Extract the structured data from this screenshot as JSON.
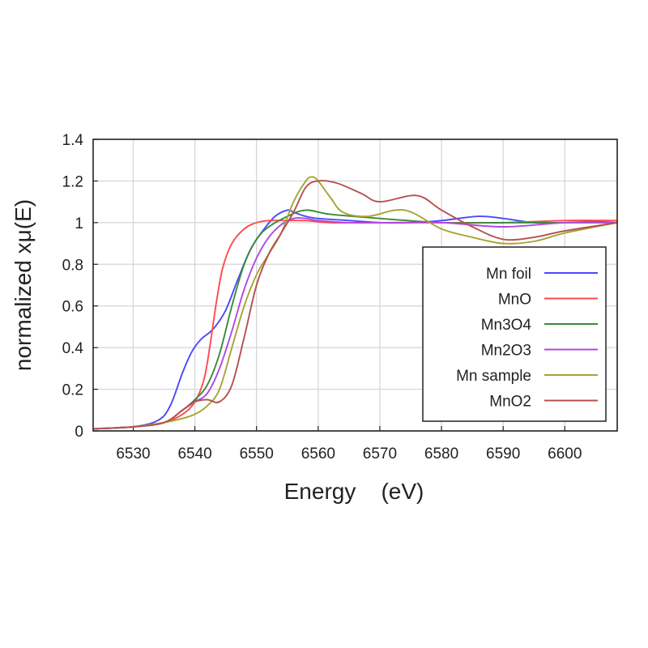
{
  "chart_data": {
    "type": "line",
    "xlabel": "Energy    (eV)",
    "ylabel": "normalized xμ(E)",
    "xlim": [
      6523.5,
      6608.5
    ],
    "ylim": [
      0,
      1.4
    ],
    "xticks": [
      6530,
      6540,
      6550,
      6560,
      6570,
      6580,
      6590,
      6600
    ],
    "xtick_labels": [
      "6530",
      "6540",
      "6550",
      "6560",
      "6570",
      "6580",
      "6590",
      "6600"
    ],
    "yticks": [
      0,
      0.2,
      0.4,
      0.6,
      0.8,
      1,
      1.2,
      1.4
    ],
    "ytick_labels": [
      "0",
      "0.2",
      "0.4",
      "0.6",
      "0.8",
      "1",
      "1.2",
      "1.4"
    ],
    "grid": true,
    "legend_position": "lower-right",
    "series": [
      {
        "name": "Mn foil",
        "color": "#4a4aff",
        "x": [
          6523.5,
          6530,
          6534,
          6536,
          6538,
          6539.5,
          6541,
          6543,
          6545,
          6547,
          6549,
          6551,
          6553,
          6555,
          6556,
          6558,
          6560,
          6565,
          6570,
          6575,
          6580,
          6586,
          6590,
          6595,
          6600,
          6608.5
        ],
        "y": [
          0.01,
          0.02,
          0.05,
          0.12,
          0.28,
          0.38,
          0.44,
          0.49,
          0.58,
          0.73,
          0.87,
          0.96,
          1.03,
          1.06,
          1.05,
          1.03,
          1.02,
          1.01,
          1.0,
          1.0,
          1.01,
          1.03,
          1.02,
          1.0,
          1.0,
          1.01
        ]
      },
      {
        "name": "MnO",
        "color": "#ff4a4a",
        "x": [
          6523.5,
          6530,
          6535,
          6538,
          6540,
          6541.5,
          6542.5,
          6543.5,
          6544.5,
          6546,
          6548,
          6550,
          6552,
          6555,
          6558,
          6562,
          6570,
          6580,
          6590,
          6600,
          6608.5
        ],
        "y": [
          0.01,
          0.02,
          0.04,
          0.08,
          0.14,
          0.25,
          0.42,
          0.62,
          0.78,
          0.9,
          0.97,
          1.0,
          1.01,
          1.01,
          1.01,
          1.0,
          1.0,
          1.0,
          1.0,
          1.01,
          1.01
        ]
      },
      {
        "name": "Mn3O4",
        "color": "#3a8a3a",
        "x": [
          6523.5,
          6530,
          6535,
          6538,
          6540,
          6542,
          6544,
          6546,
          6548,
          6550,
          6552,
          6555,
          6558,
          6562,
          6570,
          6580,
          6590,
          6600,
          6608.5
        ],
        "y": [
          0.01,
          0.02,
          0.04,
          0.1,
          0.15,
          0.22,
          0.37,
          0.6,
          0.8,
          0.92,
          0.98,
          1.03,
          1.06,
          1.04,
          1.02,
          1.0,
          1.0,
          1.0,
          1.0
        ]
      },
      {
        "name": "Mn2O3",
        "color": "#b04ae0",
        "x": [
          6523.5,
          6530,
          6535,
          6538,
          6540,
          6542,
          6544,
          6546,
          6548,
          6550,
          6552,
          6554,
          6556,
          6558,
          6560,
          6565,
          6570,
          6580,
          6590,
          6600,
          6608.5
        ],
        "y": [
          0.01,
          0.02,
          0.04,
          0.1,
          0.14,
          0.18,
          0.3,
          0.48,
          0.68,
          0.83,
          0.93,
          0.99,
          1.02,
          1.02,
          1.01,
          1.0,
          1.0,
          1.0,
          0.98,
          1.0,
          1.0
        ]
      },
      {
        "name": "Mn sample",
        "color": "#a5a532",
        "x": [
          6523.5,
          6530,
          6535,
          6538,
          6540,
          6542,
          6544,
          6546,
          6548,
          6550,
          6552,
          6554,
          6556,
          6558,
          6559,
          6560,
          6562,
          6564,
          6568,
          6574,
          6580,
          6585,
          6590,
          6595,
          6600,
          6608.5
        ],
        "y": [
          0.01,
          0.02,
          0.04,
          0.06,
          0.08,
          0.12,
          0.2,
          0.4,
          0.6,
          0.75,
          0.85,
          0.95,
          1.1,
          1.2,
          1.22,
          1.2,
          1.12,
          1.05,
          1.03,
          1.06,
          0.97,
          0.93,
          0.9,
          0.91,
          0.95,
          1.0
        ]
      },
      {
        "name": "MnO2",
        "color": "#b55050",
        "x": [
          6523.5,
          6530,
          6535,
          6538,
          6540,
          6542,
          6544,
          6546,
          6548,
          6550,
          6552,
          6554,
          6556,
          6558,
          6560,
          6563,
          6567,
          6570,
          6576,
          6580,
          6585,
          6590,
          6595,
          6600,
          6608.5
        ],
        "y": [
          0.01,
          0.02,
          0.04,
          0.1,
          0.14,
          0.15,
          0.14,
          0.22,
          0.45,
          0.7,
          0.85,
          0.95,
          1.05,
          1.17,
          1.2,
          1.19,
          1.14,
          1.1,
          1.13,
          1.06,
          0.98,
          0.92,
          0.93,
          0.96,
          1.0
        ]
      }
    ]
  }
}
